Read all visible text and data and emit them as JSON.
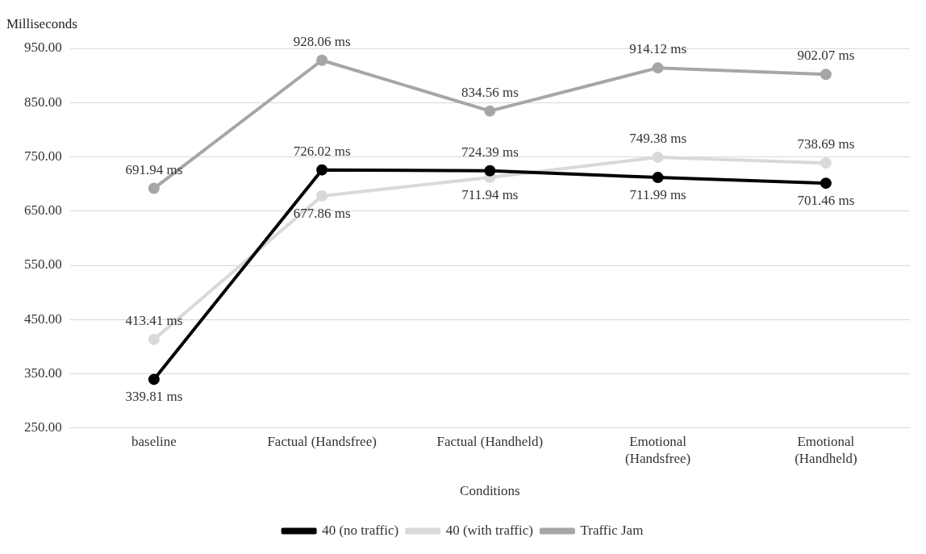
{
  "chart_data": {
    "type": "line",
    "ylabel": "Milliseconds",
    "xlabel": "Conditions",
    "categories": [
      "baseline",
      "Factual (Handsfree)",
      "Factual (Handheld)",
      "Emotional (Handsfree)",
      "Emotional (Handheld)"
    ],
    "series": [
      {
        "name": "40 (no traffic)",
        "color": "#000000",
        "values": [
          339.81,
          726.02,
          724.39,
          711.99,
          701.46
        ],
        "value_labels": [
          "339.81 ms",
          "726.02 ms",
          "724.39 ms",
          "711.99 ms",
          "701.46 ms"
        ]
      },
      {
        "name": "40 (with traffic)",
        "color": "#d9d9d9",
        "values": [
          413.41,
          677.86,
          711.94,
          749.38,
          738.69
        ],
        "value_labels": [
          "413.41 ms",
          "677.86 ms",
          "711.94 ms",
          "749.38 ms",
          "738.69 ms"
        ]
      },
      {
        "name": "Traffic Jam",
        "color": "#a6a6a6",
        "values": [
          691.94,
          928.06,
          834.56,
          914.12,
          902.07
        ],
        "value_labels": [
          "691.94 ms",
          "928.06 ms",
          "834.56 ms",
          "914.12 ms",
          "902.07 ms"
        ]
      }
    ],
    "ylim": [
      250,
      950
    ],
    "yticks": [
      {
        "value": 250,
        "label": "250.00"
      },
      {
        "value": 350,
        "label": "350.00"
      },
      {
        "value": 450,
        "label": "450.00"
      },
      {
        "value": 550,
        "label": "550.00"
      },
      {
        "value": 650,
        "label": "650.00"
      },
      {
        "value": 750,
        "label": "750.00"
      },
      {
        "value": 850,
        "label": "850.00"
      },
      {
        "value": 950,
        "label": "950.00"
      }
    ],
    "grid": "y",
    "legend": "bottom",
    "marker": "circle",
    "line_style": "solid"
  }
}
